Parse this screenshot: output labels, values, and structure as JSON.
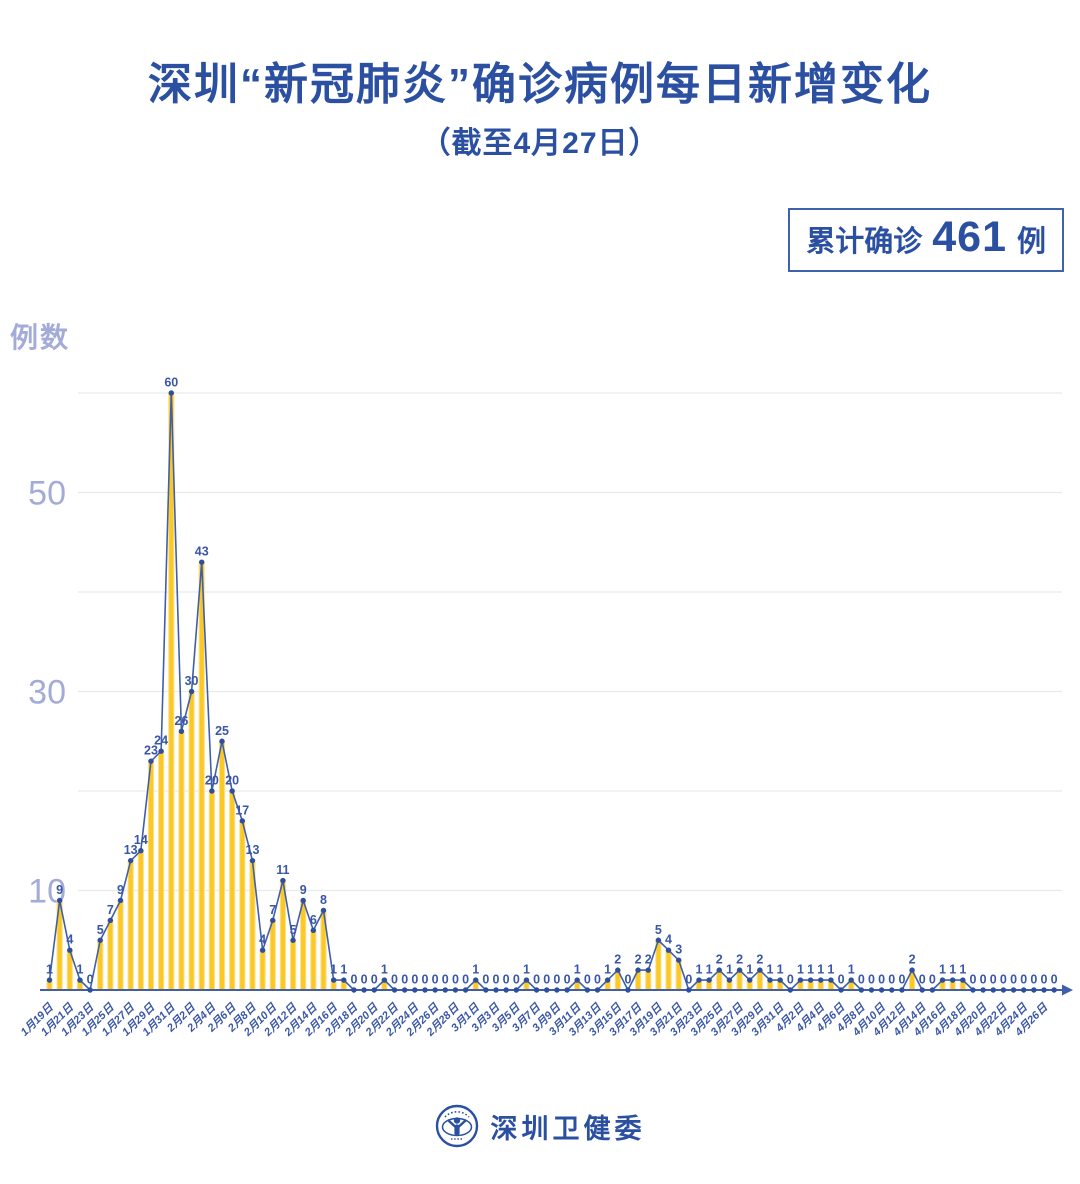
{
  "page": {
    "title": "深圳“新冠肺炎”确诊病例每日新增变化",
    "subtitle": "（截至4月27日）",
    "badge": {
      "prefix": "累计确诊",
      "number": "461",
      "suffix": "例"
    },
    "footer": {
      "org_name": "深圳卫健委"
    }
  },
  "colors": {
    "title_text": "#2B50A1",
    "axis_label": "#A3ABD9",
    "gridline": "#EAEAEA",
    "bar": "#FBC926",
    "bar_edge": "#FDE08F",
    "line": "#3F5FAC",
    "point": "#2D4F9E",
    "value_label": "#3A57A7",
    "tick_label": "#3A57A7",
    "badge_border": "#3F62AD",
    "background": "#FFFFFF"
  },
  "chart_data": {
    "type": "bar",
    "title": "深圳“新冠肺炎”确诊病例每日新增变化（截至4月27日）",
    "xlabel": "",
    "ylabel": "例数",
    "ylim": [
      0,
      62
    ],
    "grid": true,
    "y_gridlines": [
      10,
      20,
      30,
      40,
      50,
      60
    ],
    "y_ticks_labeled": [
      10,
      30,
      50
    ],
    "x_start_date": "1月19日",
    "x_end_date": "4月27日",
    "x_tick_every": 2,
    "x_tick_labels": [
      "1月19日",
      "1月21日",
      "1月23日",
      "1月25日",
      "1月27日",
      "1月29日",
      "1月31日",
      "2月2日",
      "2月4日",
      "2月6日",
      "2月8日",
      "2月10日",
      "2月12日",
      "2月14日",
      "2月16日",
      "2月18日",
      "2月20日",
      "2月22日",
      "2月24日",
      "2月26日",
      "2月28日",
      "3月1日",
      "3月3日",
      "3月5日",
      "3月7日",
      "3月9日",
      "3月11日",
      "3月13日",
      "3月15日",
      "3月17日",
      "3月19日",
      "3月21日",
      "3月23日",
      "3月25日",
      "3月27日",
      "3月29日",
      "3月31日",
      "4月2日",
      "4月4日",
      "4月6日",
      "4月8日",
      "4月10日",
      "4月12日",
      "4月14日",
      "4月16日",
      "4月18日",
      "4月20日",
      "4月22日",
      "4月24日",
      "4月26日"
    ],
    "values": [
      1,
      9,
      4,
      1,
      0,
      5,
      7,
      9,
      13,
      14,
      23,
      24,
      60,
      26,
      30,
      43,
      20,
      25,
      20,
      17,
      13,
      4,
      7,
      11,
      5,
      9,
      6,
      8,
      1,
      1,
      0,
      0,
      0,
      1,
      0,
      0,
      0,
      0,
      0,
      0,
      0,
      0,
      1,
      0,
      0,
      0,
      0,
      1,
      0,
      0,
      0,
      0,
      1,
      0,
      0,
      1,
      2,
      0,
      2,
      2,
      5,
      4,
      3,
      0,
      1,
      1,
      2,
      1,
      2,
      1,
      2,
      1,
      1,
      0,
      1,
      1,
      1,
      1,
      0,
      1,
      0,
      0,
      0,
      0,
      0,
      2,
      0,
      0,
      1,
      1,
      1,
      0,
      0,
      0,
      0,
      0,
      0,
      0,
      0,
      0
    ],
    "cumulative_total": 461
  }
}
